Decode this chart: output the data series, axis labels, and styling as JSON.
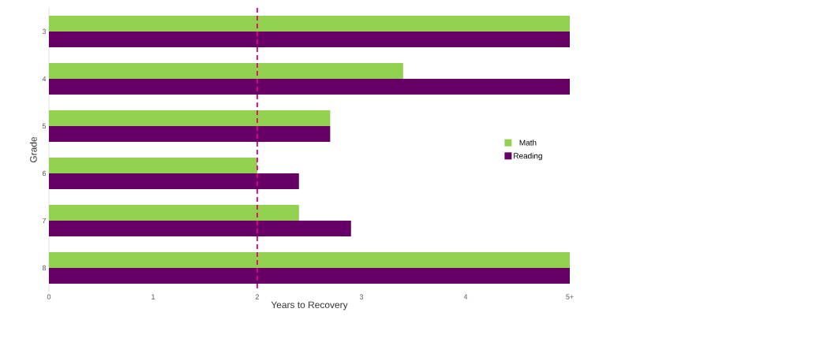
{
  "chart_data": {
    "type": "bar",
    "orientation": "horizontal",
    "xlabel": "Years to Recovery",
    "ylabel": "Grade",
    "categories": [
      "3",
      "4",
      "5",
      "6",
      "7",
      "8"
    ],
    "series": [
      {
        "name": "Math",
        "color": "#92d050",
        "values": [
          5,
          3.4,
          2.7,
          2.0,
          2.4,
          5
        ]
      },
      {
        "name": "Reading",
        "color": "#660066",
        "values": [
          5,
          5,
          2.7,
          2.4,
          2.9,
          5
        ]
      }
    ],
    "xlim": [
      0,
      5
    ],
    "xticks": [
      0,
      1,
      2,
      3,
      4,
      {
        "value": 5,
        "label": "5+"
      }
    ],
    "ref_lines": [
      {
        "axis": "x",
        "value": 2,
        "color": "#e6007e",
        "line_style": "dashed"
      }
    ],
    "legend": "right"
  }
}
